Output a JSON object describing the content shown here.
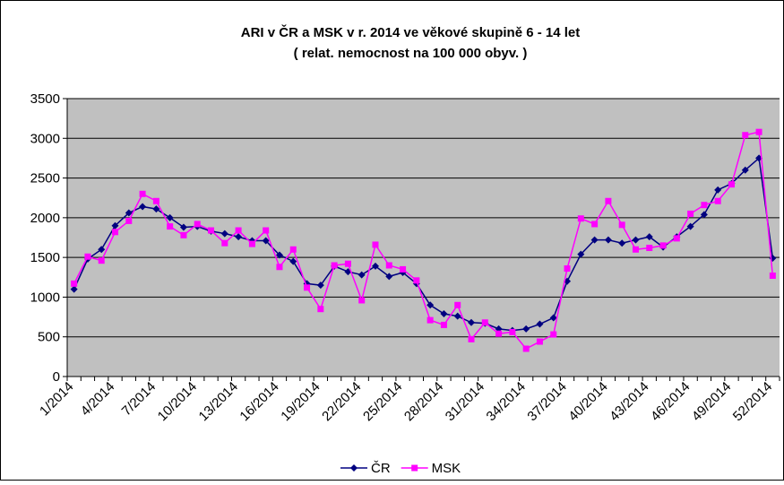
{
  "chart_data": {
    "type": "line",
    "title": "ARI v ČR a MSK v r. 2014 ve věkové skupině 6 - 14 let",
    "subtitle": "( relat. nemocnost na 100 000 obyv. )",
    "categories": [
      "1/2014",
      null,
      null,
      "4/2014",
      null,
      null,
      "7/2014",
      null,
      null,
      "10/2014",
      null,
      null,
      "13/2014",
      null,
      null,
      "16/2014",
      null,
      null,
      "19/2014",
      null,
      null,
      "22/2014",
      null,
      null,
      "25/2014",
      null,
      null,
      "28/2014",
      null,
      null,
      "31/2014",
      null,
      null,
      "34/2014",
      null,
      null,
      "37/2014",
      null,
      null,
      "40/2014",
      null,
      null,
      "43/2014",
      null,
      null,
      "46/2014",
      null,
      null,
      "49/2014",
      null,
      null,
      "52/2014"
    ],
    "series": [
      {
        "name": "ČR",
        "color": "#000080",
        "marker": "diamond",
        "values": [
          1100,
          1480,
          1600,
          1900,
          2060,
          2140,
          2110,
          2000,
          1880,
          1890,
          1830,
          1800,
          1760,
          1710,
          1710,
          1530,
          1450,
          1170,
          1150,
          1390,
          1320,
          1280,
          1390,
          1260,
          1310,
          1170,
          900,
          790,
          760,
          680,
          670,
          600,
          580,
          600,
          660,
          740,
          1200,
          1540,
          1720,
          1720,
          1680,
          1720,
          1760,
          1630,
          1760,
          1890,
          2040,
          2350,
          2430,
          2600,
          2750,
          1490
        ]
      },
      {
        "name": "MSK",
        "color": "#ff00ff",
        "marker": "square",
        "values": [
          1170,
          1510,
          1460,
          1820,
          1960,
          2300,
          2210,
          1890,
          1780,
          1920,
          1840,
          1680,
          1840,
          1670,
          1840,
          1380,
          1600,
          1120,
          850,
          1400,
          1420,
          960,
          1660,
          1400,
          1350,
          1210,
          710,
          650,
          900,
          470,
          680,
          540,
          560,
          350,
          440,
          530,
          1360,
          1990,
          1920,
          2210,
          1910,
          1600,
          1620,
          1650,
          1740,
          2050,
          2160,
          2210,
          2420,
          3040,
          3080,
          1270
        ]
      }
    ],
    "ylim": [
      0,
      3500
    ],
    "yticks": [
      0,
      500,
      1000,
      1500,
      2000,
      2500,
      3000,
      3500
    ],
    "grid": true,
    "plot_background": "#c0c0c0",
    "legend": "bottom"
  }
}
